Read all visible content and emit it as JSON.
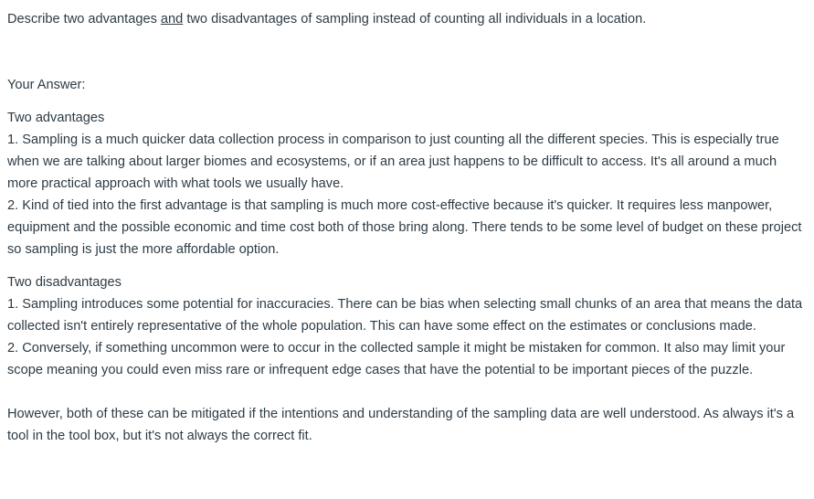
{
  "question": {
    "prefix": "Describe two advantages ",
    "underlined": "and",
    "suffix": " two disadvantages of sampling instead of counting all individuals in a location."
  },
  "answer_label": "Your Answer:",
  "answer": {
    "advantages_heading": "Two advantages",
    "advantage_1": "1. Sampling is a much quicker data collection process in comparison to just counting all the different species. This is especially true when we are talking about larger biomes and ecosystems, or if an area just happens to be difficult to access. It's all around a much more practical approach with what tools we usually have.",
    "advantage_2": "2. Kind of tied into the first advantage is that sampling is much more cost-effective because it's quicker. It requires less manpower, equipment and the possible economic and time cost both of those bring along. There tends to be some level of budget on these project so sampling is just the more affordable option.",
    "disadvantages_heading": "Two disadvantages",
    "disadvantage_1": "1. Sampling introduces some potential for inaccuracies. There can be bias when selecting small chunks of an area that means the data collected isn't entirely representative of the whole population. This can have some effect on the estimates or conclusions made.",
    "disadvantage_2": "2. Conversely, if something uncommon were to occur in the collected sample it might be mistaken for common. It also may limit your scope meaning you could even miss rare or infrequent edge cases that have the potential to be important pieces of the puzzle.",
    "conclusion": "However, both of these can be mitigated if the intentions and understanding of the sampling data are well understood. As always it's a tool in the tool box, but it's not always the correct fit."
  }
}
